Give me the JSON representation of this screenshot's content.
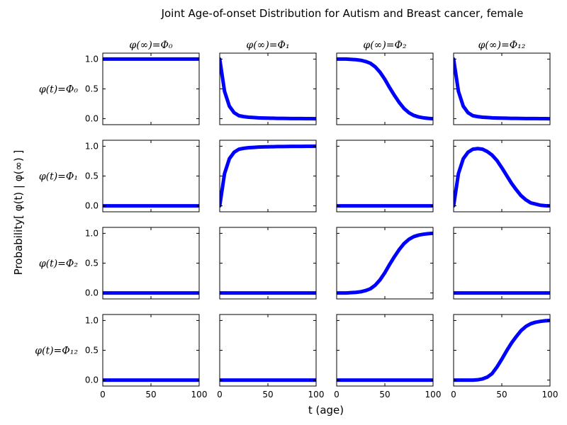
{
  "chart_data": {
    "type": "line",
    "title": "Joint Age-of-onset Distribution for Autism and Breast cancer, female",
    "xlabel": "t (age)",
    "ylabel": "Probability[ φ(t) | φ(∞) ]",
    "xlim": [
      0,
      100
    ],
    "ylim": [
      -0.1,
      1.1
    ],
    "xticks": [
      "0",
      "50",
      "100"
    ],
    "yticks": [
      "0.0",
      "0.5",
      "1.0"
    ],
    "line_color": "#0000ff",
    "col_labels": [
      "φ(∞)=Φ₀",
      "φ(∞)=Φ₁",
      "φ(∞)=Φ₂",
      "φ(∞)=Φ₁₂"
    ],
    "row_labels": [
      "φ(t)=Φ₀",
      "φ(t)=Φ₁",
      "φ(t)=Φ₂",
      "φ(t)=Φ₁₂"
    ],
    "x": [
      0,
      5,
      10,
      15,
      20,
      25,
      30,
      35,
      40,
      45,
      50,
      55,
      60,
      65,
      70,
      75,
      80,
      85,
      90,
      95,
      100
    ],
    "panels": [
      [
        {
          "y": [
            1,
            1,
            1,
            1,
            1,
            1,
            1,
            1,
            1,
            1,
            1,
            1,
            1,
            1,
            1,
            1,
            1,
            1,
            1,
            1,
            1
          ]
        },
        {
          "y": [
            1.0,
            0.46,
            0.21,
            0.1,
            0.05,
            0.035,
            0.025,
            0.02,
            0.015,
            0.012,
            0.01,
            0.008,
            0.006,
            0.005,
            0.004,
            0.003,
            0.002,
            0.002,
            0.001,
            0.001,
            0.0
          ]
        },
        {
          "y": [
            1.0,
            1.0,
            1.0,
            0.995,
            0.99,
            0.98,
            0.96,
            0.93,
            0.87,
            0.78,
            0.66,
            0.52,
            0.39,
            0.27,
            0.17,
            0.1,
            0.055,
            0.03,
            0.015,
            0.005,
            0.0
          ]
        },
        {
          "y": [
            1.0,
            0.46,
            0.21,
            0.1,
            0.05,
            0.035,
            0.025,
            0.02,
            0.015,
            0.012,
            0.01,
            0.008,
            0.006,
            0.005,
            0.004,
            0.003,
            0.002,
            0.002,
            0.001,
            0.001,
            0.0
          ]
        }
      ],
      [
        {
          "y": [
            0,
            0,
            0,
            0,
            0,
            0,
            0,
            0,
            0,
            0,
            0,
            0,
            0,
            0,
            0,
            0,
            0,
            0,
            0,
            0,
            0
          ]
        },
        {
          "y": [
            0.0,
            0.54,
            0.79,
            0.9,
            0.95,
            0.965,
            0.975,
            0.98,
            0.985,
            0.988,
            0.99,
            0.992,
            0.994,
            0.995,
            0.996,
            0.997,
            0.998,
            0.998,
            0.999,
            0.999,
            1.0
          ]
        },
        {
          "y": [
            0,
            0,
            0,
            0,
            0,
            0,
            0,
            0,
            0,
            0,
            0,
            0,
            0,
            0,
            0,
            0,
            0,
            0,
            0,
            0,
            0
          ]
        },
        {
          "y": [
            0.0,
            0.54,
            0.79,
            0.9,
            0.95,
            0.96,
            0.95,
            0.91,
            0.85,
            0.76,
            0.64,
            0.51,
            0.38,
            0.27,
            0.17,
            0.1,
            0.05,
            0.03,
            0.01,
            0.003,
            0.0
          ]
        }
      ],
      [
        {
          "y": [
            0,
            0,
            0,
            0,
            0,
            0,
            0,
            0,
            0,
            0,
            0,
            0,
            0,
            0,
            0,
            0,
            0,
            0,
            0,
            0,
            0
          ]
        },
        {
          "y": [
            0,
            0,
            0,
            0,
            0,
            0,
            0,
            0,
            0,
            0,
            0,
            0,
            0,
            0,
            0,
            0,
            0,
            0,
            0,
            0,
            0
          ]
        },
        {
          "y": [
            0.0,
            0.0,
            0.0,
            0.005,
            0.01,
            0.02,
            0.04,
            0.07,
            0.13,
            0.22,
            0.34,
            0.48,
            0.61,
            0.73,
            0.83,
            0.9,
            0.945,
            0.97,
            0.985,
            0.995,
            1.0
          ]
        },
        {
          "y": [
            0.0,
            0.0,
            0.0,
            0.0,
            0.0,
            0.0,
            0.0,
            0.0,
            0.0,
            0.0,
            0.0,
            0.0,
            0.0,
            0.0,
            0.0,
            0.0,
            0.0,
            0.0,
            0.0,
            0.0,
            0.0
          ]
        }
      ],
      [
        {
          "y": [
            0,
            0,
            0,
            0,
            0,
            0,
            0,
            0,
            0,
            0,
            0,
            0,
            0,
            0,
            0,
            0,
            0,
            0,
            0,
            0,
            0
          ]
        },
        {
          "y": [
            0,
            0,
            0,
            0,
            0,
            0,
            0,
            0,
            0,
            0,
            0,
            0,
            0,
            0,
            0,
            0,
            0,
            0,
            0,
            0,
            0
          ]
        },
        {
          "y": [
            0,
            0,
            0,
            0,
            0,
            0,
            0,
            0,
            0,
            0,
            0,
            0,
            0,
            0,
            0,
            0,
            0,
            0,
            0,
            0,
            0
          ]
        },
        {
          "y": [
            0.0,
            0.0,
            0.0,
            0.0,
            0.0,
            0.005,
            0.02,
            0.05,
            0.11,
            0.22,
            0.35,
            0.49,
            0.62,
            0.73,
            0.83,
            0.9,
            0.945,
            0.97,
            0.985,
            0.995,
            1.0
          ]
        }
      ]
    ]
  }
}
